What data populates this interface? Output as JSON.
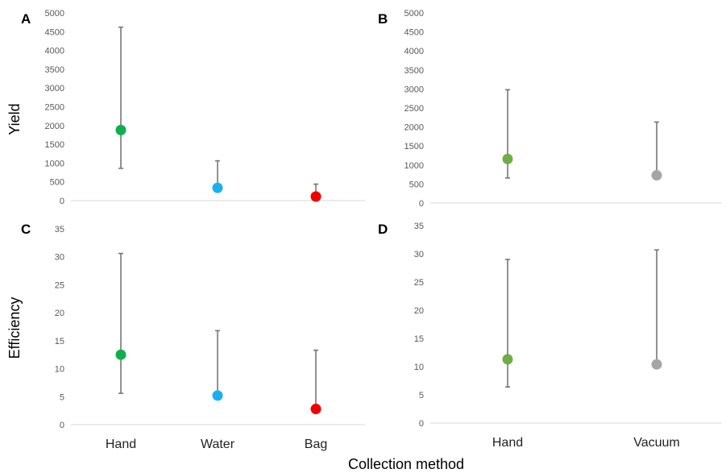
{
  "figure": {
    "y_label_top": "Yield",
    "y_label_bottom": "Efficiency",
    "x_label": "Collection method"
  },
  "chart_data": [
    {
      "panel": "A",
      "type": "scatter",
      "categories": [
        "Hand",
        "Water",
        "Bag"
      ],
      "values": [
        1880,
        340,
        110
      ],
      "error_low": [
        860,
        null,
        null
      ],
      "error_high": [
        4620,
        1060,
        440
      ],
      "colors": [
        "#0db04b",
        "#1ab0ef",
        "#f20000"
      ],
      "ylabel": "Yield",
      "ylim": [
        0,
        5000
      ],
      "yticks": [
        0,
        500,
        1000,
        1500,
        2000,
        2500,
        3000,
        3500,
        4000,
        4500,
        5000
      ],
      "show_category_labels": false
    },
    {
      "panel": "B",
      "type": "scatter",
      "categories": [
        "Hand",
        "Vacuum"
      ],
      "values": [
        1160,
        730
      ],
      "error_low": [
        660,
        null
      ],
      "error_high": [
        2980,
        2130
      ],
      "colors": [
        "#70ad47",
        "#a5a5a5"
      ],
      "ylim": [
        0,
        5000
      ],
      "yticks": [
        0,
        500,
        1000,
        1500,
        2000,
        2500,
        3000,
        3500,
        4000,
        4500,
        5000
      ],
      "show_category_labels": false
    },
    {
      "panel": "C",
      "type": "scatter",
      "categories": [
        "Hand",
        "Water",
        "Bag"
      ],
      "values": [
        12.5,
        5.2,
        2.8
      ],
      "error_low": [
        5.6,
        null,
        null
      ],
      "error_high": [
        30.6,
        16.8,
        13.3
      ],
      "colors": [
        "#0db04b",
        "#1ab0ef",
        "#f20000"
      ],
      "ylabel": "Efficiency",
      "ylim": [
        0,
        35
      ],
      "yticks": [
        0,
        5,
        10,
        15,
        20,
        25,
        30,
        35
      ],
      "show_category_labels": true
    },
    {
      "panel": "D",
      "type": "scatter",
      "categories": [
        "Hand",
        "Vacuum"
      ],
      "values": [
        11.3,
        10.4
      ],
      "error_low": [
        6.4,
        null
      ],
      "error_high": [
        29.0,
        30.7
      ],
      "colors": [
        "#70ad47",
        "#a5a5a5"
      ],
      "ylim": [
        0,
        35
      ],
      "yticks": [
        0,
        5,
        10,
        15,
        20,
        25,
        30,
        35
      ],
      "show_category_labels": true
    }
  ]
}
